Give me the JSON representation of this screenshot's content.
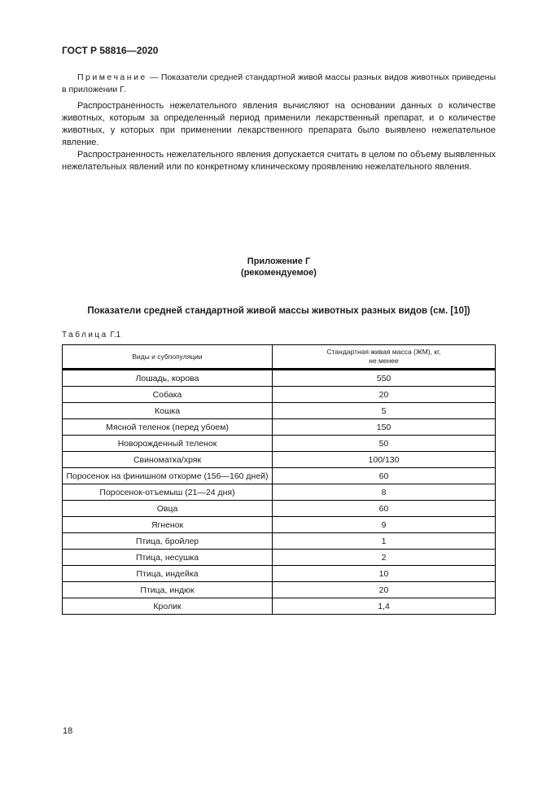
{
  "page": {
    "header": "ГОСТ Р 58816—2020",
    "page_number": "18"
  },
  "note": {
    "label": "Примечание",
    "text": " — Показатели средней стандартной живой массы разных видов животных приведены в приложении Г."
  },
  "paragraphs": [
    "Распространенность нежелательного явления вычисляют на основании данных о количестве животных, которым за определенный период применили лекарственный препарат, и о количестве животных, у которых при применении лекарственного препарата было выявлено нежелательное явление.",
    "Распространенность нежелательного явления допускается считать в целом по объему выявленных нежелательных явлений или по конкретному клиническому проявлению нежелательного явления."
  ],
  "appendix": {
    "title": "Приложение Г",
    "subtitle": "(рекомендуемое)",
    "heading": "Показатели средней стандартной живой массы животных разных видов (см. [10])"
  },
  "table": {
    "caption_label": "Таблица",
    "caption_number": " Г.1",
    "columns": {
      "species": "Виды и субпопуляции",
      "mass": "Стандартная живая масса (ЖМ), кг,\nне менее"
    },
    "rows": [
      {
        "name": "Лошадь, корова",
        "value": "550"
      },
      {
        "name": "Собака",
        "value": "20"
      },
      {
        "name": "Кошка",
        "value": "5"
      },
      {
        "name": "Мясной теленок (перед убоем)",
        "value": "150"
      },
      {
        "name": "Новорожденный теленок",
        "value": "50"
      },
      {
        "name": "Свиноматка/хряк",
        "value": "100/130"
      },
      {
        "name": "Поросенок на финишном откорме (156—160 дней)",
        "value": "60"
      },
      {
        "name": "Поросенок-отъемыш (21—24 дня)",
        "value": "8"
      },
      {
        "name": "Овца",
        "value": "60"
      },
      {
        "name": "Ягненок",
        "value": "9"
      },
      {
        "name": "Птица, бройлер",
        "value": "1"
      },
      {
        "name": "Птица, несушка",
        "value": "2"
      },
      {
        "name": "Птица, индейка",
        "value": "10"
      },
      {
        "name": "Птица, индюк",
        "value": "20"
      },
      {
        "name": "Кролик",
        "value": "1,4"
      }
    ]
  }
}
